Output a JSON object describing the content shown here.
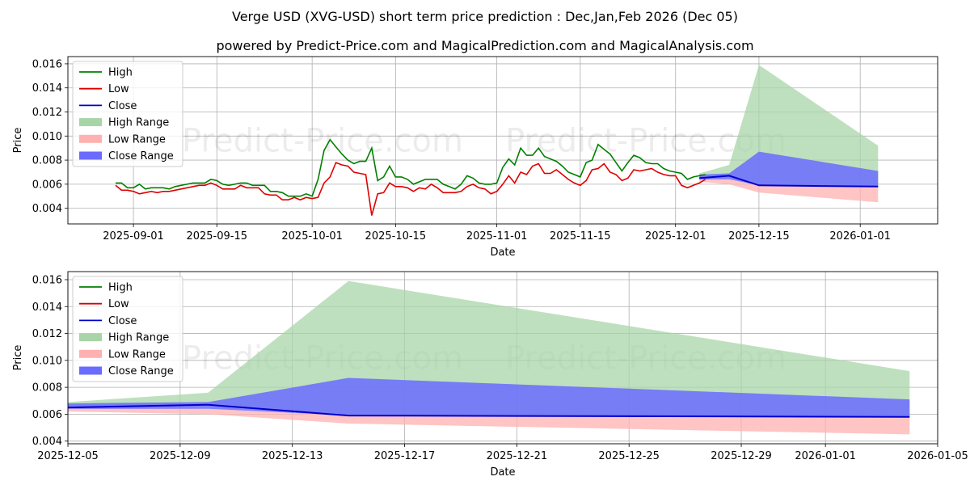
{
  "title": "Verge USD (XVG-USD) short term price prediction : Dec,Jan,Feb 2026 (Dec 05)",
  "subtitle": "powered by Predict-Price.com and MagicalPrediction.com and MagicalAnalysis.com",
  "watermark": "Predict-Price.com",
  "colors": {
    "high": "#008000",
    "low": "#e00000",
    "close": "#0000cc",
    "high_range": "#a8d5a8",
    "low_range": "#ffb0b0",
    "close_range": "#6b6bff",
    "grid": "#b0b0b0"
  },
  "legend": [
    "High",
    "Low",
    "Close",
    "High Range",
    "Low Range",
    "Close Range"
  ],
  "chart_data": [
    {
      "type": "line",
      "xlabel": "Date",
      "ylabel": "Price",
      "xlim": [
        "2025-08-21",
        "2026-01-14"
      ],
      "ylim": [
        0.0027,
        0.0166
      ],
      "yticks": [
        0.004,
        0.006,
        0.008,
        0.01,
        0.012,
        0.014,
        0.016
      ],
      "ytick_labels": [
        "0.004",
        "0.006",
        "0.008",
        "0.010",
        "0.012",
        "0.014",
        "0.016"
      ],
      "xticks": [
        "2025-09-01",
        "2025-09-15",
        "2025-10-01",
        "2025-10-15",
        "2025-11-01",
        "2025-11-15",
        "2025-12-01",
        "2025-12-15",
        "2026-01-01"
      ],
      "history_start": "2025-08-29",
      "series": [
        {
          "name": "High",
          "values": [
            0.0061,
            0.0061,
            0.0057,
            0.0057,
            0.006,
            0.0056,
            0.0057,
            0.0057,
            0.0057,
            0.0056,
            0.0058,
            0.0059,
            0.006,
            0.0061,
            0.0061,
            0.0061,
            0.0064,
            0.0063,
            0.006,
            0.0059,
            0.006,
            0.0061,
            0.0061,
            0.0059,
            0.0059,
            0.0059,
            0.0054,
            0.0054,
            0.0053,
            0.005,
            0.005,
            0.005,
            0.0052,
            0.005,
            0.0064,
            0.0088,
            0.0097,
            0.0091,
            0.0085,
            0.008,
            0.0077,
            0.0079,
            0.0079,
            0.009,
            0.0063,
            0.0066,
            0.0075,
            0.0066,
            0.0066,
            0.0064,
            0.006,
            0.0062,
            0.0064,
            0.0064,
            0.0064,
            0.006,
            0.0058,
            0.0056,
            0.006,
            0.0067,
            0.0065,
            0.0061,
            0.006,
            0.006,
            0.0061,
            0.0074,
            0.0081,
            0.0076,
            0.009,
            0.0084,
            0.0084,
            0.009,
            0.0083,
            0.0081,
            0.0079,
            0.0075,
            0.007,
            0.0068,
            0.0066,
            0.0078,
            0.008,
            0.0093,
            0.0089,
            0.0085,
            0.0078,
            0.0071,
            0.0078,
            0.0084,
            0.0082,
            0.0078,
            0.0077,
            0.0077,
            0.0073,
            0.0071,
            0.007,
            0.0069,
            0.0064,
            0.0066,
            0.0067,
            0.0068
          ]
        },
        {
          "name": "Low",
          "values": [
            0.0059,
            0.0055,
            0.0055,
            0.0054,
            0.0052,
            0.0053,
            0.0054,
            0.0053,
            0.0054,
            0.0054,
            0.0055,
            0.0056,
            0.0057,
            0.0058,
            0.0059,
            0.0059,
            0.0061,
            0.0059,
            0.0056,
            0.0056,
            0.0056,
            0.0059,
            0.0057,
            0.0057,
            0.0057,
            0.0052,
            0.0051,
            0.0051,
            0.0047,
            0.0047,
            0.0049,
            0.0047,
            0.0049,
            0.0048,
            0.0049,
            0.0061,
            0.0066,
            0.0078,
            0.0076,
            0.0075,
            0.007,
            0.0069,
            0.0068,
            0.0034,
            0.0052,
            0.0053,
            0.0061,
            0.0058,
            0.0058,
            0.0057,
            0.0054,
            0.0057,
            0.0056,
            0.006,
            0.0057,
            0.0053,
            0.0053,
            0.0053,
            0.0054,
            0.0058,
            0.006,
            0.0057,
            0.0056,
            0.0052,
            0.0054,
            0.006,
            0.0067,
            0.0061,
            0.007,
            0.0068,
            0.0075,
            0.0077,
            0.0069,
            0.0069,
            0.0072,
            0.0068,
            0.0064,
            0.0061,
            0.0059,
            0.0063,
            0.0072,
            0.0073,
            0.0077,
            0.007,
            0.0068,
            0.0063,
            0.0065,
            0.0072,
            0.0071,
            0.0072,
            0.0073,
            0.007,
            0.0068,
            0.0067,
            0.0067,
            0.0059,
            0.0057,
            0.0059,
            0.0061,
            0.0064
          ]
        }
      ],
      "forecast": {
        "dates": [
          "2025-12-05",
          "2025-12-10",
          "2025-12-15",
          "2026-01-04"
        ],
        "close": [
          0.0065,
          0.0067,
          0.0059,
          0.0058
        ],
        "high_range": {
          "upper": [
            0.0069,
            0.0076,
            0.0159,
            0.0092
          ],
          "lower": [
            0.0065,
            0.0066,
            0.006,
            0.0058
          ]
        },
        "low_range": {
          "upper": [
            0.0065,
            0.0064,
            0.0059,
            0.0058
          ],
          "lower": [
            0.0062,
            0.006,
            0.0053,
            0.0045
          ]
        },
        "close_range": {
          "upper": [
            0.0068,
            0.0069,
            0.0087,
            0.0071
          ],
          "lower": [
            0.0064,
            0.0064,
            0.0059,
            0.0058
          ]
        }
      }
    },
    {
      "type": "line",
      "xlabel": "Date",
      "ylabel": "Price",
      "xlim": [
        "2025-12-05",
        "2026-01-05"
      ],
      "ylim": [
        0.0038,
        0.0166
      ],
      "yticks": [
        0.004,
        0.006,
        0.008,
        0.01,
        0.012,
        0.014,
        0.016
      ],
      "ytick_labels": [
        "0.004",
        "0.006",
        "0.008",
        "0.010",
        "0.012",
        "0.014",
        "0.016"
      ],
      "xticks": [
        "2025-12-05",
        "2025-12-09",
        "2025-12-13",
        "2025-12-17",
        "2025-12-21",
        "2025-12-25",
        "2025-12-29",
        "2026-01-01",
        "2026-01-05"
      ],
      "forecast": {
        "dates": [
          "2025-12-05",
          "2025-12-10",
          "2025-12-15",
          "2026-01-04"
        ],
        "close": [
          0.0065,
          0.0067,
          0.0059,
          0.0058
        ],
        "high_range": {
          "upper": [
            0.0069,
            0.0076,
            0.0159,
            0.0092
          ],
          "lower": [
            0.0065,
            0.0066,
            0.006,
            0.0058
          ]
        },
        "low_range": {
          "upper": [
            0.0065,
            0.0064,
            0.0059,
            0.0058
          ],
          "lower": [
            0.0062,
            0.006,
            0.0053,
            0.0045
          ]
        },
        "close_range": {
          "upper": [
            0.0068,
            0.0069,
            0.0087,
            0.0071
          ],
          "lower": [
            0.0064,
            0.0064,
            0.0059,
            0.0058
          ]
        }
      }
    }
  ]
}
